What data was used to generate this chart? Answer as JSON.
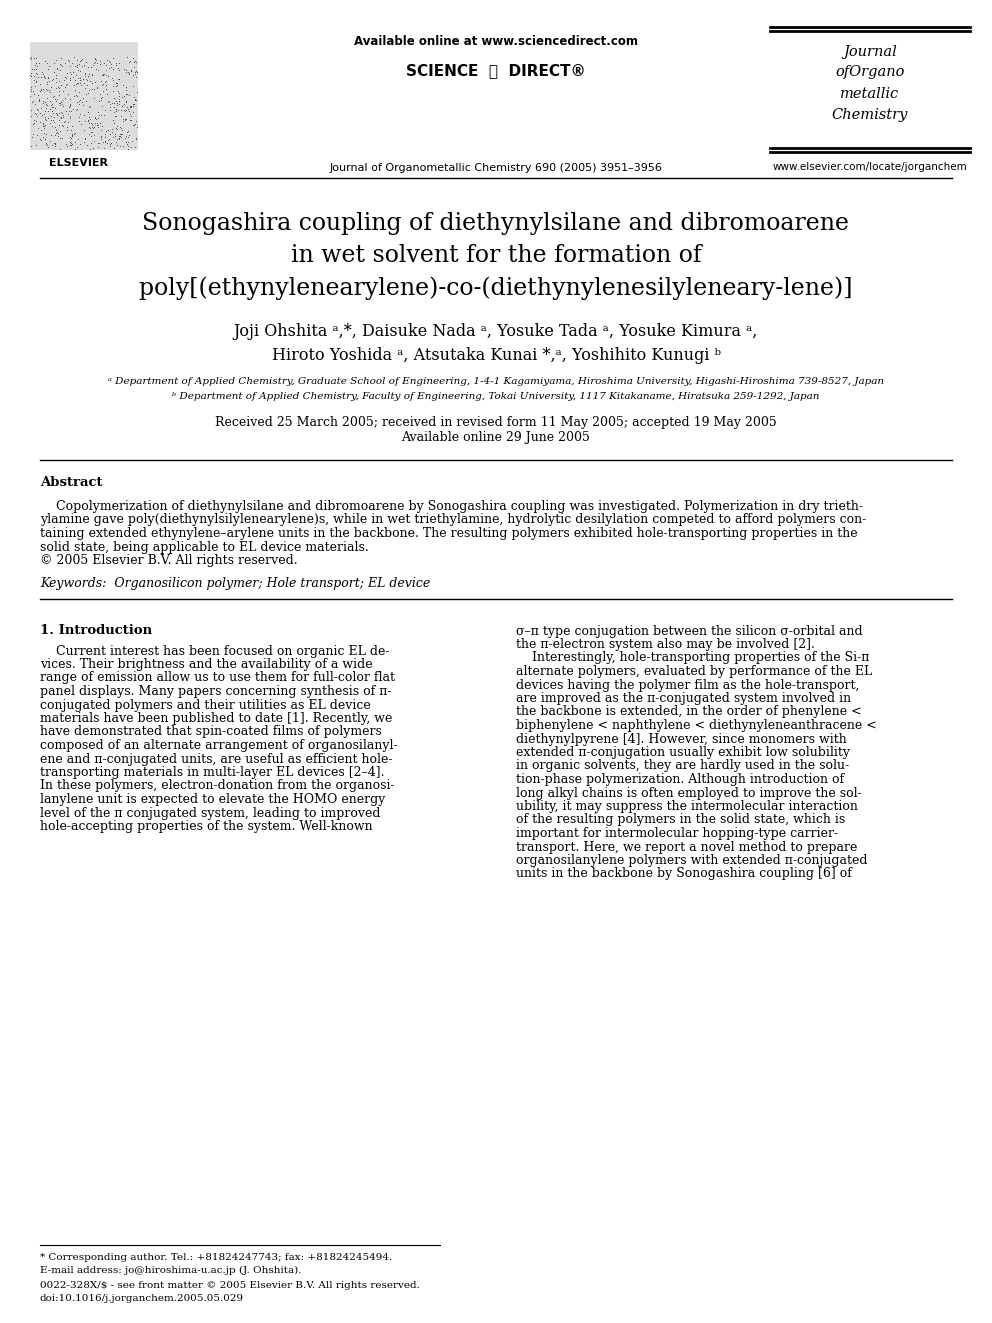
{
  "figsize": [
    9.92,
    13.23
  ],
  "dpi": 100,
  "bg_color": "#ffffff",
  "header": {
    "available_online": "Available online at www.sciencedirect.com",
    "sciencedirect_text": "SCIENCE  ⓓ  DIRECT®",
    "journal_line": "Journal of Organometallic Chemistry 690 (2005) 3951–3956",
    "journal_name_lines": [
      "Journal",
      "ofOrgano",
      "metallic",
      "Chemistry"
    ],
    "website": "www.elsevier.com/locate/jorganchem",
    "elsevier_text": "ELSEVIER"
  },
  "title_lines": [
    "Sonogashira coupling of diethynylsilane and dibromoarene",
    "in wet solvent for the formation of",
    "poly[(ethynylenearylene)-co-(diethynylenesilyl­enearylene)]"
  ],
  "authors_line1": "Joji Ohshita ᵃ,*, Daisuke Nada ᵃ, Yosuke Tada ᵃ, Yosuke Kimura ᵃ,",
  "authors_line2": "Hiroto Yoshida ᵃ, Atsutaka Kunai *,ᵃ, Yoshihito Kunugi ᵇ",
  "affil_a": "ᵃ Department of Applied Chemistry, Graduate School of Engineering, 1-4-1 Kagamiyama, Hiroshima University, Higashi-Hiroshima 739-8527, Japan",
  "affil_b": "ᵇ Department of Applied Chemistry, Faculty of Engineering, Tokai University, 1117 Kitakaname, Hiratsuka 259-1292, Japan",
  "dates_line1": "Received 25 March 2005; received in revised form 11 May 2005; accepted 19 May 2005",
  "dates_line2": "Available online 29 June 2005",
  "abstract_heading": "Abstract",
  "abstract_body_lines": [
    "    Copolymerization of diethynylsilane and dibromoarene by Sonogashira coupling was investigated. Polymerization in dry trieth-",
    "ylamine gave poly(diethynylsilylenearylene)s, while in wet triethylamine, hydrolytic desilylation competed to afford polymers con-",
    "taining extended ethynylene–arylene units in the backbone. The resulting polymers exhibited hole-transporting properties in the",
    "solid state, being applicable to EL device materials.",
    "© 2005 Elsevier B.V. All rights reserved."
  ],
  "keywords": "Keywords:  Organosilicon polymer; Hole transport; EL device",
  "intro_heading": "1. Introduction",
  "intro_left_lines": [
    "    Current interest has been focused on organic EL de-",
    "vices. Their brightness and the availability of a wide",
    "range of emission allow us to use them for full-color flat",
    "panel displays. Many papers concerning synthesis of π-",
    "conjugated polymers and their utilities as EL device",
    "materials have been published to date [1]. Recently, we",
    "have demonstrated that spin-coated films of polymers",
    "composed of an alternate arrangement of organosilanyl-",
    "ene and π-conjugated units, are useful as efficient hole-",
    "transporting materials in multi-layer EL devices [2–4].",
    "In these polymers, electron-donation from the organosi-",
    "lanylene unit is expected to elevate the HOMO energy",
    "level of the π conjugated system, leading to improved",
    "hole-accepting properties of the system. Well-known"
  ],
  "intro_right_lines": [
    "σ–π type conjugation between the silicon σ-orbital and",
    "the π-electron system also may be involved [2].",
    "    Interestingly, hole-transporting properties of the Si-π",
    "alternate polymers, evaluated by performance of the EL",
    "devices having the polymer film as the hole-transport,",
    "are improved as the π-conjugated system involved in",
    "the backbone is extended, in the order of phenylene <",
    "biphenylene < naphthylene < diethynyleneanthracene <",
    "diethynylpyrene [4]. However, since monomers with",
    "extended π-conjugation usually exhibit low solubility",
    "in organic solvents, they are hardly used in the solu-",
    "tion-phase polymerization. Although introduction of",
    "long alkyl chains is often employed to improve the sol-",
    "ubility, it may suppress the intermolecular interaction",
    "of the resulting polymers in the solid state, which is",
    "important for intermolecular hopping-type carrier-",
    "transport. Here, we report a novel method to prepare",
    "organosilanylene polymers with extended π-conjugated",
    "units in the backbone by Sonogashira coupling [6] of"
  ],
  "footnote1": "* Corresponding author. Tel.: +81824247743; fax: +81824245494.",
  "footnote2": "E-mail address: jo@hiroshima-u.ac.jp (J. Ohshita).",
  "footnote3": "0022-328X/$ - see front matter © 2005 Elsevier B.V. All rights reserved.",
  "footnote4": "doi:10.1016/j.jorganchem.2005.05.029"
}
